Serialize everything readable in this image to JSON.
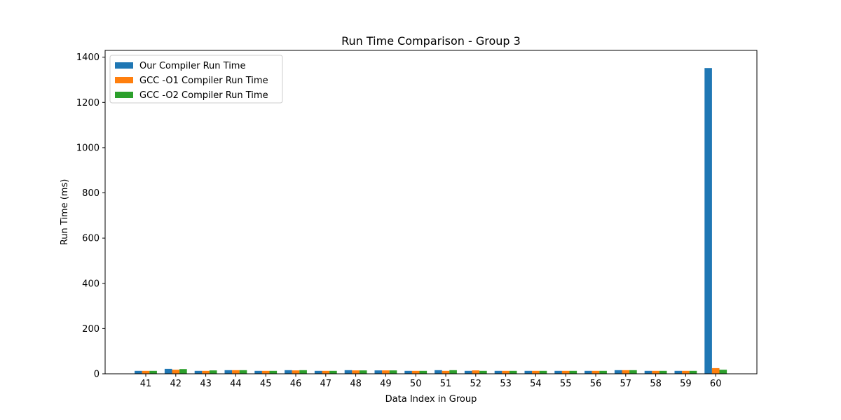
{
  "chart_data": {
    "type": "bar",
    "title": "Run Time Comparison - Group 3",
    "xlabel": "Data Index in Group",
    "ylabel": "Run Time (ms)",
    "ylim": [
      0,
      1430
    ],
    "yticks": [
      "0",
      "200",
      "400",
      "600",
      "800",
      "1000",
      "1200",
      "1400"
    ],
    "legend_position": "top-left",
    "categories": [
      "41",
      "42",
      "43",
      "44",
      "45",
      "46",
      "47",
      "48",
      "49",
      "50",
      "51",
      "52",
      "53",
      "54",
      "55",
      "56",
      "57",
      "58",
      "59",
      "60"
    ],
    "series": [
      {
        "name": "Our Compiler Run Time",
        "color": "#1f77b4",
        "values": [
          13,
          22,
          13,
          16,
          13,
          16,
          13,
          16,
          15,
          13,
          16,
          13,
          13,
          13,
          13,
          13,
          16,
          13,
          13,
          1352
        ]
      },
      {
        "name": "GCC -O1 Compiler Run Time",
        "color": "#ff7f0e",
        "values": [
          13,
          18,
          13,
          16,
          13,
          15,
          13,
          15,
          15,
          13,
          13,
          15,
          13,
          13,
          13,
          13,
          16,
          13,
          13,
          25
        ]
      },
      {
        "name": "GCC -O2 Compiler Run Time",
        "color": "#2ca02c",
        "values": [
          13,
          21,
          15,
          16,
          13,
          16,
          13,
          15,
          15,
          13,
          16,
          13,
          13,
          13,
          13,
          13,
          16,
          13,
          13,
          18
        ]
      }
    ]
  }
}
